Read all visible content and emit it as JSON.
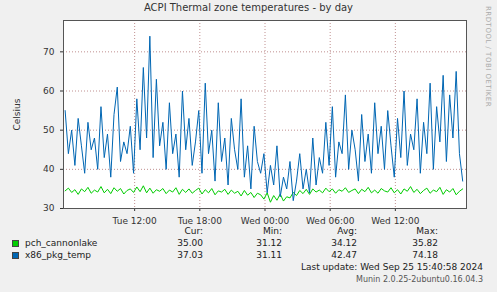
{
  "chart_data": {
    "type": "line",
    "title": "ACPI Thermal zone temperatures - by day",
    "ylabel": "Celsius",
    "credit": "RRDTOOL / TOBI OETIKER",
    "stat_headers": [
      "Cur:",
      "Min:",
      "Avg:",
      "Max:"
    ],
    "footer": [
      "Last update: Wed Sep 25 15:40:58 2024",
      "Munin 2.0.25-2ubuntu0.16.04.3"
    ],
    "legend": "bottom",
    "grid": true,
    "xlim": [
      5.45,
      42.55
    ],
    "xticks": [
      {
        "value": 12,
        "label": "Tue 12:00"
      },
      {
        "value": 18,
        "label": "Tue 18:00"
      },
      {
        "value": 24,
        "label": "Wed 00:00"
      },
      {
        "value": 30,
        "label": "Wed 06:00"
      },
      {
        "value": 36,
        "label": "Wed 12:00"
      }
    ],
    "ylim": [
      30,
      78
    ],
    "yticks": [
      30,
      40,
      50,
      60,
      70
    ],
    "x": [
      5.6,
      5.9,
      6.2,
      6.5,
      6.8,
      7.1,
      7.4,
      7.7,
      8.0,
      8.3,
      8.6,
      8.9,
      9.2,
      9.5,
      9.8,
      10.1,
      10.4,
      10.7,
      11.0,
      11.3,
      11.6,
      11.9,
      12.2,
      12.5,
      12.8,
      13.1,
      13.4,
      13.7,
      14.0,
      14.3,
      14.6,
      14.9,
      15.2,
      15.5,
      15.8,
      16.1,
      16.4,
      16.7,
      17.0,
      17.3,
      17.6,
      17.9,
      18.2,
      18.5,
      18.8,
      19.1,
      19.4,
      19.7,
      20.0,
      20.3,
      20.6,
      20.9,
      21.2,
      21.5,
      21.8,
      22.1,
      22.4,
      22.7,
      23.0,
      23.3,
      23.6,
      23.9,
      24.2,
      24.5,
      24.8,
      25.1,
      25.4,
      25.7,
      26.0,
      26.3,
      26.6,
      26.9,
      27.2,
      27.5,
      27.8,
      28.1,
      28.4,
      28.7,
      29.0,
      29.3,
      29.6,
      29.9,
      30.2,
      30.5,
      30.8,
      31.1,
      31.4,
      31.7,
      32.0,
      32.3,
      32.6,
      32.9,
      33.2,
      33.5,
      33.8,
      34.1,
      34.4,
      34.7,
      35.0,
      35.3,
      35.6,
      35.9,
      36.2,
      36.5,
      36.8,
      37.1,
      37.4,
      37.7,
      38.0,
      38.3,
      38.6,
      38.9,
      39.2,
      39.5,
      39.8,
      40.1,
      40.4,
      40.7,
      41.0,
      41.3,
      41.6,
      41.9,
      42.2
    ],
    "series": [
      {
        "name": "pch_cannonlake",
        "color": "#00cc00",
        "stats": [
          "35.00",
          "31.12",
          "34.12",
          "35.82"
        ],
        "values": [
          34.5,
          35.2,
          34.1,
          34.8,
          33.6,
          35.0,
          34.3,
          35.4,
          33.9,
          34.7,
          34.2,
          35.6,
          34.0,
          34.9,
          33.8,
          35.3,
          34.4,
          35.1,
          33.7,
          34.6,
          35.0,
          34.1,
          35.5,
          34.3,
          35.8,
          34.0,
          35.2,
          33.9,
          34.8,
          34.4,
          35.1,
          33.8,
          34.7,
          34.2,
          35.3,
          33.6,
          34.9,
          34.1,
          35.0,
          33.9,
          34.6,
          35.2,
          33.7,
          34.8,
          34.0,
          35.1,
          33.5,
          34.5,
          34.2,
          34.9,
          33.6,
          34.7,
          33.9,
          34.4,
          33.2,
          34.6,
          33.4,
          34.1,
          32.8,
          33.9,
          33.5,
          32.4,
          34.0,
          31.6,
          33.3,
          32.1,
          33.7,
          31.9,
          33.0,
          32.7,
          34.1,
          33.3,
          34.6,
          33.8,
          34.9,
          33.6,
          35.0,
          34.2,
          34.7,
          34.0,
          35.2,
          34.3,
          35.0,
          33.9,
          34.8,
          34.4,
          35.3,
          34.1,
          34.6,
          35.0,
          33.8,
          34.9,
          34.3,
          35.4,
          34.0,
          34.7,
          33.9,
          35.1,
          34.5,
          34.2,
          35.3,
          34.0,
          34.8,
          33.7,
          35.0,
          34.4,
          35.6,
          34.1,
          34.9,
          33.8,
          34.6,
          35.2,
          33.9,
          34.7,
          34.3,
          35.4,
          33.6,
          34.8,
          34.2,
          35.1,
          33.5,
          34.4,
          35.0
        ]
      },
      {
        "name": "x86_pkg_temp",
        "color": "#0066b3",
        "stats": [
          "37.03",
          "31.11",
          "42.47",
          "74.18"
        ],
        "values": [
          55,
          44,
          50,
          41,
          53,
          46,
          39,
          52,
          45,
          48,
          40,
          56,
          43,
          49,
          38,
          54,
          61,
          42,
          47,
          44,
          51,
          39,
          58,
          45,
          66,
          48,
          74,
          43,
          63,
          46,
          52,
          40,
          57,
          44,
          49,
          38,
          60,
          45,
          53,
          41,
          47,
          55,
          39,
          62,
          44,
          50,
          37,
          57,
          42,
          48,
          36,
          53,
          45,
          40,
          58,
          38,
          46,
          35,
          51,
          42,
          39,
          44,
          34,
          41,
          36,
          46,
          33,
          38,
          35,
          42,
          32,
          37,
          44,
          35,
          40,
          34,
          48,
          36,
          43,
          39,
          52,
          41,
          56,
          38,
          47,
          44,
          59,
          40,
          50,
          45,
          37,
          54,
          42,
          49,
          39,
          57,
          44,
          51,
          40,
          55,
          46,
          38,
          53,
          43,
          60,
          41,
          49,
          45,
          58,
          39,
          52,
          44,
          62,
          40,
          56,
          47,
          64,
          42,
          59,
          48,
          65,
          44,
          37
        ]
      }
    ]
  }
}
